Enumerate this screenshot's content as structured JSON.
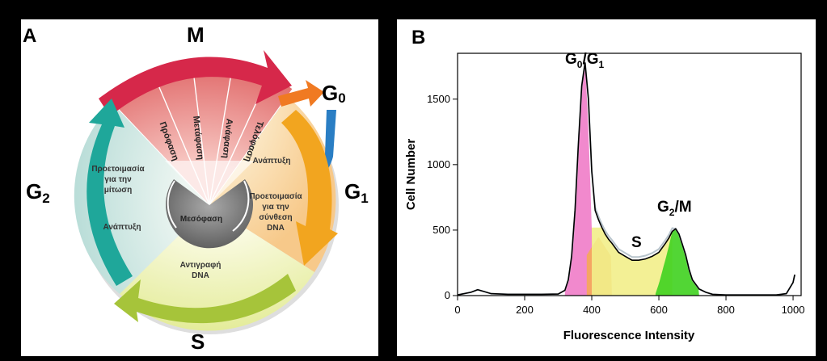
{
  "panel_a": {
    "letter": "A",
    "phases": {
      "m": "M",
      "g0": "G",
      "g0_sub": "0",
      "g1": "G",
      "g1_sub": "1",
      "g2": "G",
      "g2_sub": "2",
      "s": "S"
    },
    "mitosis_stages": [
      "Πρόφαση",
      "Μετάφαση",
      "Ανάφαση",
      "Τελόφαση"
    ],
    "g1_text": {
      "growth": "Ανάπτυξη",
      "prep": [
        "Προετοιμασία",
        "για την",
        "σύνθεση",
        "DNA"
      ]
    },
    "g2_text": {
      "prep": [
        "Προετοιμασία",
        "για την",
        "μίτωση"
      ],
      "growth": "Ανάπτυξη"
    },
    "s_text": [
      "Αντιγραφή",
      "DNA"
    ],
    "center": "Μεσόφαση",
    "colors": {
      "m_arrow": "#d6284a",
      "g0_arrow": "#f07a22",
      "g0_return": "#2a7ec4",
      "g1_arrow": "#f2a51f",
      "s_arrow": "#a6c43a",
      "g2_arrow": "#1fa79a"
    }
  },
  "panel_b": {
    "letter": "B",
    "peak_labels": {
      "g0g1_a": "G",
      "g0g1_a_sub": "0",
      "g0g1_b": "/G",
      "g0g1_b_sub": "1",
      "s": "S",
      "g2m_a": "G",
      "g2m_a_sub": "2",
      "g2m_b": "/M"
    },
    "colors": {
      "g0g1_fill": "#f07cc8",
      "s_fill_early": "#f5a858",
      "s_fill": "#f2ee8a",
      "g2m_fill": "#3fd11f",
      "overlay": "#b8c4cc",
      "outline": "#000000"
    }
  },
  "chart_data": {
    "type": "area",
    "xlabel": "Fluorescence Intensity",
    "ylabel": "Cell Number",
    "xlim": [
      0,
      1024
    ],
    "ylim": [
      0,
      1850
    ],
    "x_ticks": [
      0,
      200,
      400,
      600,
      800,
      1000
    ],
    "y_ticks": [
      0,
      500,
      1000,
      1500
    ],
    "grid": false,
    "series": [
      {
        "x": [
          0,
          40,
          60,
          80,
          100,
          150,
          200,
          250,
          300,
          320,
          330,
          340,
          350,
          360,
          370,
          380,
          390,
          400,
          410,
          420,
          430,
          440,
          450,
          460,
          480,
          500,
          520,
          540,
          560,
          580,
          600,
          620,
          630,
          640,
          650,
          660,
          670,
          680,
          690,
          700,
          720,
          740,
          760,
          800,
          850,
          900,
          950,
          980,
          1000,
          1005
        ],
        "y": [
          5,
          25,
          45,
          30,
          15,
          10,
          10,
          10,
          12,
          40,
          120,
          300,
          650,
          1150,
          1600,
          1780,
          1500,
          950,
          650,
          580,
          520,
          470,
          430,
          400,
          330,
          300,
          270,
          270,
          280,
          300,
          330,
          400,
          440,
          490,
          510,
          470,
          390,
          310,
          200,
          120,
          50,
          25,
          10,
          5,
          5,
          5,
          5,
          15,
          100,
          160
        ]
      }
    ]
  }
}
